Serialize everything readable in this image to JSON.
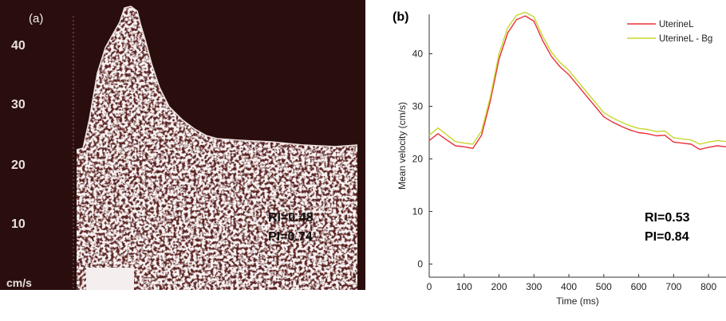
{
  "panel_a": {
    "label": "(a)",
    "y_ticks": [
      "40",
      "30",
      "20",
      "10"
    ],
    "unit": "cm/s",
    "stat_ri": "RI=0.48",
    "stat_pi": "PI=0.74",
    "colors": {
      "background": "#2a0e0e",
      "envelope": "#e9dfdc"
    }
  },
  "chart_data": {
    "type": "line",
    "panel_label": "(b)",
    "title": "",
    "xlabel": "Time (ms)",
    "ylabel": "Mean velocity (cm/s)",
    "xlim": [
      0,
      850
    ],
    "ylim": [
      -2.5,
      47.5
    ],
    "x_ticks": [
      0,
      100,
      200,
      300,
      400,
      500,
      600,
      700,
      800
    ],
    "y_ticks": [
      0,
      10,
      20,
      30,
      40
    ],
    "grid": false,
    "legend_position": "top-right",
    "series": [
      {
        "name": "UterineL",
        "color": "#e8303a",
        "x": [
          0,
          25,
          50,
          75,
          100,
          125,
          150,
          175,
          200,
          225,
          250,
          275,
          300,
          325,
          350,
          375,
          400,
          425,
          450,
          475,
          500,
          525,
          550,
          575,
          600,
          625,
          650,
          675,
          700,
          725,
          750,
          775,
          800,
          825,
          850
        ],
        "y": [
          23.5,
          24.8,
          23.6,
          22.5,
          22.3,
          22.0,
          24.5,
          31.0,
          39.0,
          44.0,
          46.5,
          47.2,
          46.2,
          42.5,
          39.5,
          37.5,
          36.0,
          34.0,
          32.0,
          30.0,
          28.0,
          27.0,
          26.2,
          25.5,
          25.0,
          24.8,
          24.4,
          24.5,
          23.2,
          23.0,
          22.8,
          21.8,
          22.2,
          22.5,
          22.3
        ]
      },
      {
        "name": "UterineL - Bg",
        "color": "#c9d62e",
        "x": [
          0,
          25,
          50,
          75,
          100,
          125,
          150,
          175,
          200,
          225,
          250,
          275,
          300,
          325,
          350,
          375,
          400,
          425,
          450,
          475,
          500,
          525,
          550,
          575,
          600,
          625,
          650,
          675,
          700,
          725,
          750,
          775,
          800,
          825,
          850
        ],
        "y": [
          24.5,
          25.9,
          24.6,
          23.3,
          23.0,
          22.8,
          25.3,
          31.8,
          40.0,
          45.0,
          47.3,
          47.9,
          47.0,
          43.3,
          40.3,
          38.3,
          36.8,
          34.8,
          32.8,
          30.8,
          28.8,
          27.8,
          27.0,
          26.3,
          25.8,
          25.6,
          25.2,
          25.3,
          24.0,
          23.8,
          23.6,
          22.8,
          23.2,
          23.5,
          23.3
        ]
      }
    ],
    "annotations": [
      "RI=0.53",
      "PI=0.84"
    ]
  }
}
